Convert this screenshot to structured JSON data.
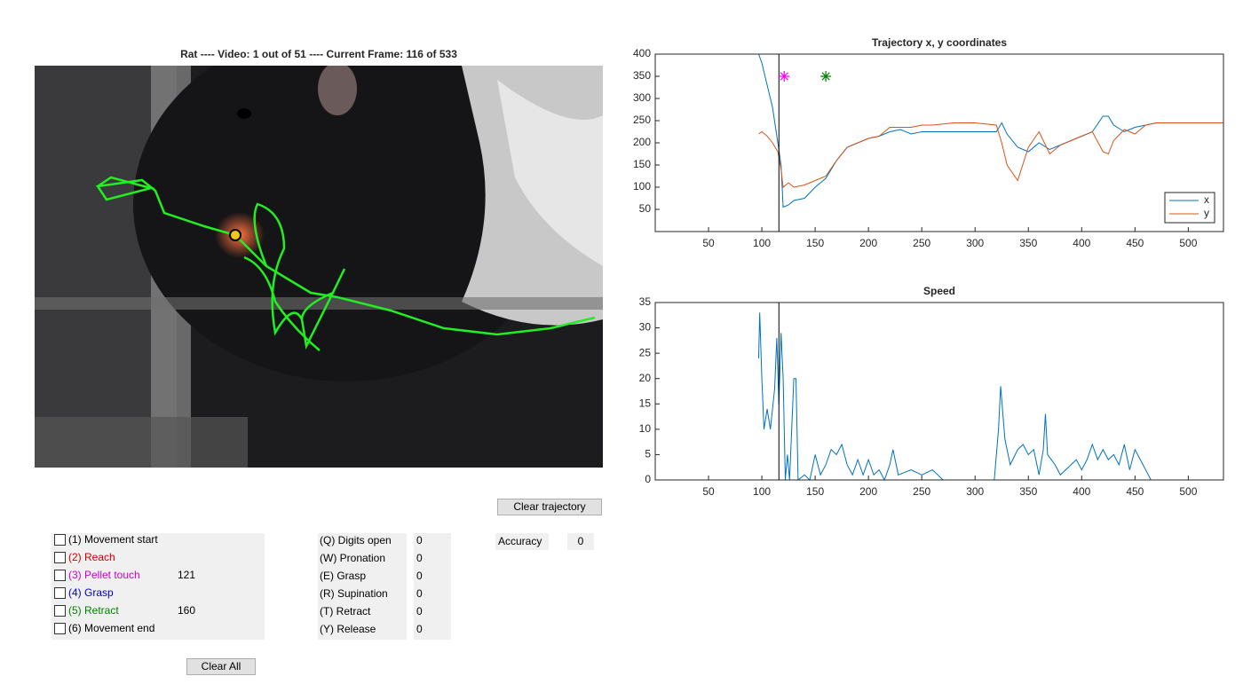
{
  "video_panel": {
    "title": "Rat  ----  Video: 1 out of 51  ----  Current Frame: 116 of 533"
  },
  "buttons": {
    "clear_trajectory": "Clear trajectory",
    "clear_all": "Clear All"
  },
  "events": [
    {
      "label": "(1) Movement start",
      "color": "#000000"
    },
    {
      "label": "(2) Reach",
      "color": "#d00000"
    },
    {
      "label": "(3) Pellet touch",
      "color": "#cc00cc",
      "frame": 121
    },
    {
      "label": "(4) Grasp",
      "color": "#0000c0"
    },
    {
      "label": "(5) Retract",
      "color": "#008000",
      "frame": 160
    },
    {
      "label": "(6) Movement end",
      "color": "#000000"
    }
  ],
  "qualities": [
    {
      "label": "(Q) Digits open",
      "value": 0
    },
    {
      "label": "(W) Pronation",
      "value": 0
    },
    {
      "label": "(E) Grasp",
      "value": 0
    },
    {
      "label": "(R) Supination",
      "value": 0
    },
    {
      "label": "(T) Retract",
      "value": 0
    },
    {
      "label": "(Y) Release",
      "value": 0
    }
  ],
  "accuracy": {
    "label": "Accuracy",
    "value": 0
  },
  "chart_data": [
    {
      "type": "line",
      "title": "Trajectory x, y coordinates",
      "x": [
        97,
        100,
        105,
        110,
        115,
        118,
        120,
        125,
        130,
        140,
        150,
        160,
        170,
        180,
        190,
        200,
        210,
        220,
        230,
        240,
        250,
        260,
        280,
        300,
        320,
        325,
        330,
        340,
        350,
        360,
        370,
        380,
        390,
        400,
        410,
        420,
        425,
        430,
        440,
        450,
        460,
        470,
        500,
        533
      ],
      "series": [
        {
          "name": "x",
          "color": "#0072bd",
          "values": [
            400,
            380,
            330,
            280,
            200,
            150,
            55,
            60,
            70,
            75,
            100,
            120,
            160,
            190,
            200,
            210,
            215,
            225,
            230,
            220,
            225,
            225,
            225,
            225,
            225,
            245,
            220,
            190,
            180,
            200,
            185,
            195,
            205,
            215,
            225,
            260,
            260,
            240,
            225,
            235,
            240,
            245,
            245,
            245
          ]
        },
        {
          "name": "y",
          "color": "#d95319",
          "values": [
            220,
            225,
            215,
            200,
            180,
            140,
            100,
            110,
            100,
            105,
            115,
            125,
            160,
            190,
            200,
            210,
            215,
            235,
            235,
            235,
            240,
            240,
            245,
            245,
            240,
            200,
            150,
            115,
            190,
            225,
            175,
            195,
            205,
            215,
            225,
            180,
            175,
            205,
            230,
            220,
            240,
            245,
            245,
            245
          ]
        }
      ],
      "xlim": [
        0,
        533
      ],
      "ylim": [
        0,
        400
      ],
      "xticks": [
        50,
        100,
        150,
        200,
        250,
        300,
        350,
        400,
        450,
        500
      ],
      "yticks": [
        50,
        100,
        150,
        200,
        250,
        300,
        350,
        400
      ],
      "cursor_x": 116,
      "markers": [
        {
          "x": 121,
          "y": 350,
          "color": "#ff00ff"
        },
        {
          "x": 160,
          "y": 350,
          "color": "#008000"
        }
      ],
      "legend": "southeast"
    },
    {
      "type": "line",
      "title": "Speed",
      "x": [
        97,
        98,
        100,
        102,
        105,
        108,
        112,
        114,
        116,
        118,
        120,
        122,
        124,
        126,
        130,
        132,
        134,
        140,
        145,
        150,
        155,
        160,
        165,
        170,
        175,
        180,
        185,
        190,
        195,
        200,
        205,
        210,
        215,
        220,
        223,
        228,
        240,
        250,
        260,
        270,
        300,
        318,
        322,
        324,
        328,
        333,
        340,
        345,
        350,
        355,
        360,
        364,
        366,
        368,
        375,
        380,
        390,
        395,
        400,
        405,
        410,
        415,
        420,
        425,
        430,
        435,
        440,
        445,
        450,
        455,
        460,
        465,
        500,
        533
      ],
      "values": [
        24,
        33,
        20,
        10,
        14,
        10,
        18,
        28,
        15,
        29,
        20,
        0,
        5,
        0,
        20,
        20,
        0,
        1,
        0,
        5,
        1,
        3,
        6,
        5,
        7,
        3,
        1,
        4,
        1,
        4,
        1,
        2,
        0,
        3,
        6,
        1,
        2,
        1,
        2,
        0,
        0,
        0,
        10,
        18.5,
        8,
        3,
        6,
        7,
        5,
        6,
        1,
        6,
        13,
        5,
        3,
        1,
        3,
        4,
        2,
        4,
        7,
        4,
        6,
        4,
        5,
        3,
        7,
        2,
        6,
        4,
        2,
        0,
        0,
        0
      ],
      "color": "#0072bd",
      "xlim": [
        0,
        533
      ],
      "ylim": [
        0,
        35
      ],
      "xticks": [
        50,
        100,
        150,
        200,
        250,
        300,
        350,
        400,
        450,
        500
      ],
      "yticks": [
        0,
        5,
        10,
        15,
        20,
        25,
        30,
        35
      ],
      "cursor_x": 116
    }
  ]
}
